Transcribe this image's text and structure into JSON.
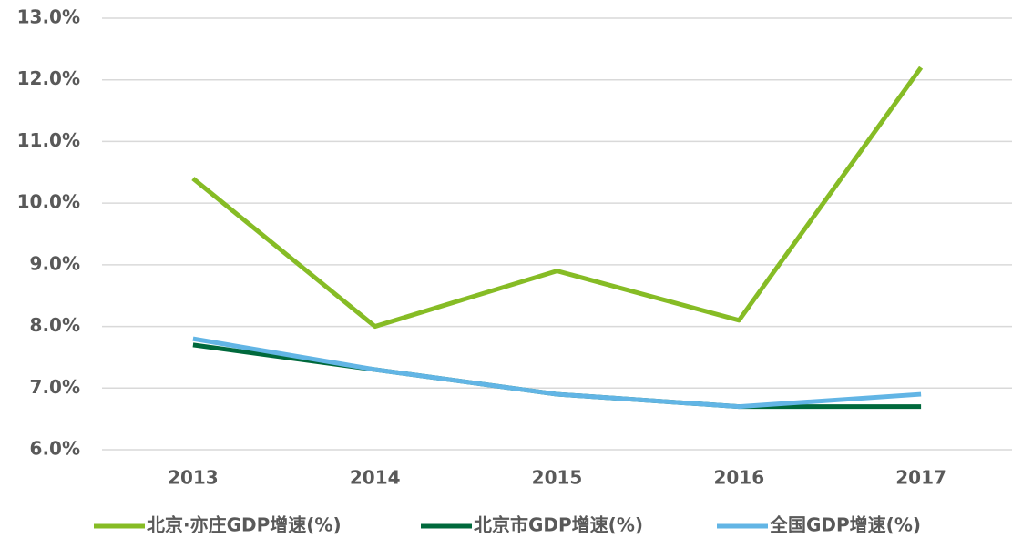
{
  "chart_data": {
    "type": "line",
    "categories": [
      "2013",
      "2014",
      "2015",
      "2016",
      "2017"
    ],
    "series": [
      {
        "name": "北京·亦庄GDP增速(%)",
        "color": "#86bc25",
        "values": [
          10.4,
          8.0,
          8.9,
          8.1,
          12.2
        ]
      },
      {
        "name": "北京市GDP增速(%)",
        "color": "#00693c",
        "values": [
          7.7,
          7.3,
          6.9,
          6.7,
          6.7
        ]
      },
      {
        "name": "全国GDP增速(%)",
        "color": "#62b5e5",
        "values": [
          7.8,
          7.3,
          6.9,
          6.7,
          6.9
        ]
      }
    ],
    "ylim": [
      6,
      13
    ],
    "yticks": [
      {
        "value": 6,
        "label": "6.0%"
      },
      {
        "value": 7,
        "label": "7.0%"
      },
      {
        "value": 8,
        "label": "8.0%"
      },
      {
        "value": 9,
        "label": "9.0%"
      },
      {
        "value": 10,
        "label": "10.0%"
      },
      {
        "value": 11,
        "label": "11.0%"
      },
      {
        "value": 12,
        "label": "12.0%"
      },
      {
        "value": 13,
        "label": "13.0%"
      }
    ],
    "grid": true,
    "legend": "bottom"
  }
}
